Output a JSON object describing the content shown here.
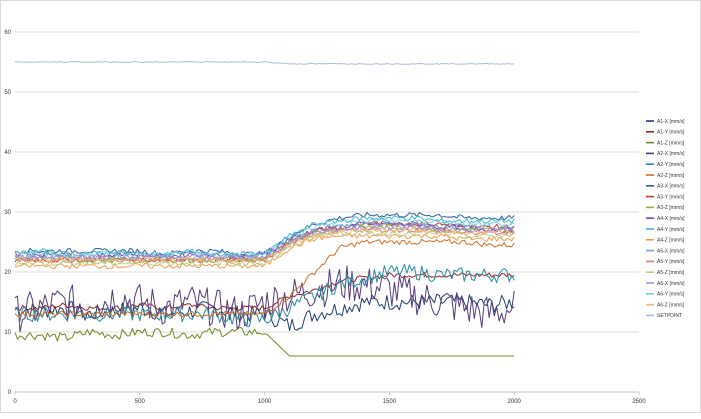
{
  "chart_data": {
    "type": "line",
    "title": "",
    "xlabel": "",
    "ylabel": "",
    "xlim": [
      0,
      2500
    ],
    "ylim": [
      0,
      60
    ],
    "x_ticks": [
      0,
      500,
      1000,
      1500,
      2000,
      2500
    ],
    "y_ticks": [
      0,
      10,
      20,
      30,
      40,
      50,
      60
    ],
    "grid": "horizontal",
    "legend_position": "right",
    "x_sample": [
      0,
      100,
      200,
      300,
      400,
      500,
      600,
      700,
      800,
      900,
      1000,
      1100,
      1200,
      1300,
      1400,
      1500,
      1600,
      1700,
      1800,
      1900,
      2000
    ],
    "series": [
      {
        "name": "A1-X [mm/s]",
        "color": "#1f3f6e",
        "values": [
          14,
          13.5,
          14,
          13,
          13.5,
          14,
          13,
          13.5,
          14,
          13,
          13,
          11,
          13,
          14,
          15,
          15,
          15,
          15,
          15,
          14.5,
          15
        ]
      },
      {
        "name": "A1-Y [mm/s]",
        "color": "#8b2a2a",
        "values": [
          14,
          14,
          14.5,
          14,
          14,
          14.5,
          14,
          14.5,
          14,
          14,
          14,
          16,
          17,
          18.5,
          19,
          19.5,
          19.5,
          19.5,
          19.5,
          19.5,
          19.5
        ]
      },
      {
        "name": "A1-Z [mm/s]",
        "color": "#6a8a1f",
        "values": [
          9.5,
          9.5,
          9,
          10,
          9.5,
          10,
          10,
          9.5,
          10,
          10,
          10,
          6,
          6,
          6,
          6,
          6,
          6,
          6,
          6,
          6,
          6
        ]
      },
      {
        "name": "A2-X [mm/s]",
        "color": "#54387a",
        "values": [
          13,
          14,
          15,
          14,
          16,
          15,
          14,
          15,
          14,
          13,
          15,
          16,
          17,
          18,
          18,
          17,
          16,
          15,
          14,
          13,
          14
        ]
      },
      {
        "name": "A2-Y [mm/s]",
        "color": "#2a8aa0",
        "values": [
          13,
          13,
          13,
          13,
          13,
          13,
          13,
          13,
          13,
          12,
          12,
          14,
          16,
          18,
          19,
          20,
          20,
          19.5,
          19.5,
          19.5,
          19.5
        ]
      },
      {
        "name": "A2-Z [mm/s]",
        "color": "#d06d1e",
        "values": [
          13,
          13,
          13,
          13,
          13,
          13,
          13,
          13,
          13,
          13,
          13,
          16,
          20,
          24,
          25,
          25,
          25,
          25,
          25,
          24.5,
          24.5
        ]
      },
      {
        "name": "A3-X [mm/s]",
        "color": "#2e5f9a",
        "values": [
          23.5,
          23.5,
          23.5,
          23.5,
          23.5,
          23.5,
          23,
          23.5,
          23.5,
          23,
          23,
          26,
          28,
          29,
          29.5,
          29.5,
          29.5,
          29.5,
          29,
          29,
          29
        ]
      },
      {
        "name": "A3-Y [mm/s]",
        "color": "#c0392b",
        "values": [
          22,
          22,
          22,
          22,
          22,
          22,
          22,
          22,
          22,
          22,
          22,
          25,
          27,
          27.5,
          28,
          28,
          28,
          28,
          27.5,
          27.5,
          27.5
        ]
      },
      {
        "name": "A3-Z [mm/s]",
        "color": "#8fb63a",
        "values": [
          22,
          22,
          22,
          22,
          22,
          22,
          22,
          22,
          22,
          22,
          22,
          25,
          26.5,
          27,
          27.5,
          27.5,
          27.5,
          27,
          27,
          27,
          27
        ]
      },
      {
        "name": "A4-X [mm/s]",
        "color": "#6d48a8",
        "values": [
          23,
          23,
          23,
          22.5,
          23,
          23,
          22.5,
          23,
          23,
          22.5,
          23,
          25.5,
          27,
          27.5,
          28,
          28,
          28,
          27.5,
          27.5,
          27,
          27
        ]
      },
      {
        "name": "A4-Y [mm/s]",
        "color": "#3fb6cf",
        "values": [
          23,
          23.5,
          23,
          23,
          23.5,
          23,
          23,
          23.5,
          23,
          23,
          23,
          26,
          28,
          28.5,
          29,
          29,
          29,
          28.5,
          28.5,
          28.5,
          28.5
        ]
      },
      {
        "name": "A4-Z [mm/s]",
        "color": "#f29a4a",
        "values": [
          21,
          21,
          21,
          21,
          21,
          21,
          21,
          21,
          21,
          21,
          21,
          24,
          25.5,
          26,
          26,
          26,
          26,
          26,
          25.5,
          25.5,
          25.5
        ]
      },
      {
        "name": "A5-X [mm/s]",
        "color": "#7f9ccc",
        "values": [
          22.5,
          22.5,
          22.5,
          22.5,
          22.5,
          22.5,
          22.5,
          22.5,
          22.5,
          22.5,
          22.5,
          25,
          27,
          27.5,
          28,
          28,
          28,
          27.5,
          27.5,
          27.5,
          27.5
        ]
      },
      {
        "name": "A5-Y [mm/s]",
        "color": "#d47a7a",
        "values": [
          22,
          22,
          22,
          22,
          22,
          22,
          22,
          22,
          22,
          22,
          22,
          24.5,
          26.5,
          27,
          27,
          27,
          27,
          27,
          26.5,
          26.5,
          26.5
        ]
      },
      {
        "name": "A5-Z [mm/s]",
        "color": "#b6cd7f",
        "values": [
          21.5,
          21.5,
          21.5,
          21.5,
          21.5,
          21.5,
          21.5,
          21.5,
          21.5,
          21.5,
          21.5,
          24,
          26,
          26.5,
          26.5,
          26.5,
          26.5,
          26.5,
          26,
          26,
          26
        ]
      },
      {
        "name": "A6-X [mm/s]",
        "color": "#a48bc9",
        "values": [
          22.5,
          22.5,
          22.5,
          22.5,
          22.5,
          22.5,
          22.5,
          22.5,
          22.5,
          22.5,
          22.5,
          25,
          26.5,
          27,
          27.5,
          27.5,
          27.5,
          27,
          27,
          27,
          27
        ]
      },
      {
        "name": "A6-Y [mm/s]",
        "color": "#7fcbe0",
        "values": [
          23,
          23,
          23,
          23,
          23,
          23,
          23,
          23,
          23,
          23,
          23,
          25.5,
          27.5,
          28,
          28.5,
          28.5,
          28.5,
          28.5,
          28,
          28,
          28
        ]
      },
      {
        "name": "A6-Z [mm/s]",
        "color": "#f5b67a",
        "values": [
          22,
          22,
          22,
          22,
          22,
          22,
          22,
          22,
          22,
          22,
          22,
          24.5,
          26,
          26.5,
          27,
          27,
          27,
          26.5,
          26.5,
          26.5,
          26.5
        ]
      },
      {
        "name": "SETPOINT",
        "color": "#a9bfdc",
        "values": [
          55,
          55,
          55,
          55,
          55,
          55,
          55,
          55,
          55,
          55,
          55,
          54.7,
          54.7,
          54.7,
          54.7,
          54.7,
          54.7,
          54.7,
          54.7,
          54.7,
          54.7
        ]
      }
    ]
  }
}
